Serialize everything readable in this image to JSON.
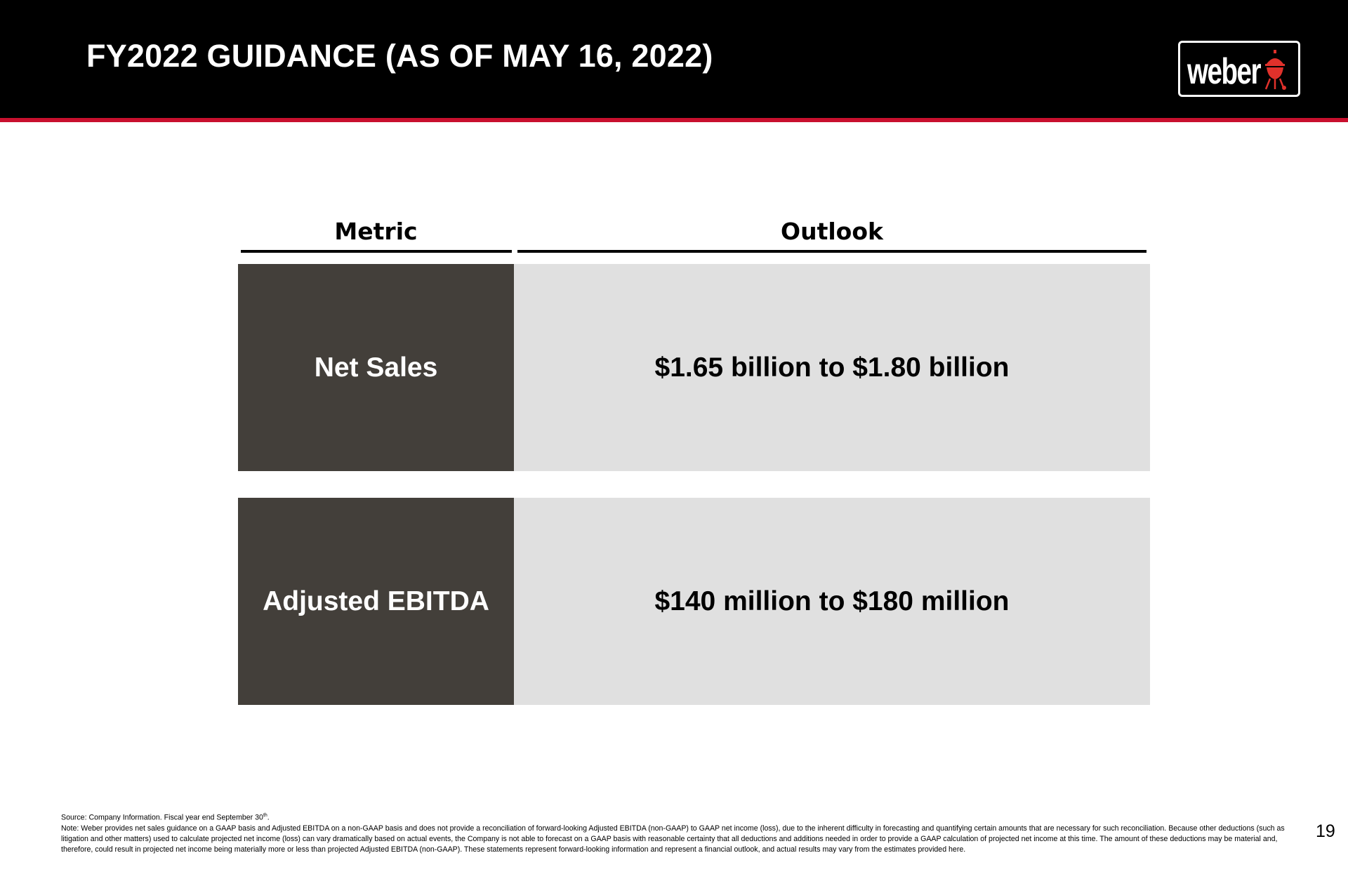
{
  "header": {
    "title": "FY2022 GUIDANCE (AS OF MAY 16, 2022)",
    "logo_text": "weber",
    "colors": {
      "bar": "#000000",
      "accent_rule": "#c8102e",
      "kettle_icon": "#e0312b"
    }
  },
  "table": {
    "columns": [
      "Metric",
      "Outlook"
    ],
    "rows": [
      {
        "metric": "Net Sales",
        "outlook": "$1.65 billion to $1.80 billion"
      },
      {
        "metric": "Adjusted EBITDA",
        "outlook": "$140 million to $180 million"
      }
    ],
    "colors": {
      "metric_bg": "#433f3a",
      "outlook_bg": "#e0e0e0"
    }
  },
  "footer": {
    "source_prefix": "Source:  Company Information. Fiscal year end September 30",
    "source_sup": "th",
    "source_suffix": ".",
    "note": "Note: Weber provides net sales guidance on a GAAP basis and Adjusted EBITDA on a non-GAAP basis and does not provide a reconciliation of forward-looking Adjusted EBITDA (non-GAAP) to GAAP net income (loss), due to the inherent difficulty in forecasting and quantifying certain amounts that are necessary for such reconciliation. Because other deductions (such as litigation and other matters) used to calculate projected net income (loss) can vary dramatically based on actual events, the Company is not able to forecast on a GAAP basis with reasonable certainty that all deductions and additions needed in order to provide a GAAP calculation of projected net income at this time. The amount of these deductions may be material and, therefore, could result in projected net income being materially more or less than projected Adjusted EBITDA (non-GAAP). These statements represent forward-looking information and represent a financial outlook, and actual results may vary from the estimates provided here.",
    "page_number": "19"
  }
}
